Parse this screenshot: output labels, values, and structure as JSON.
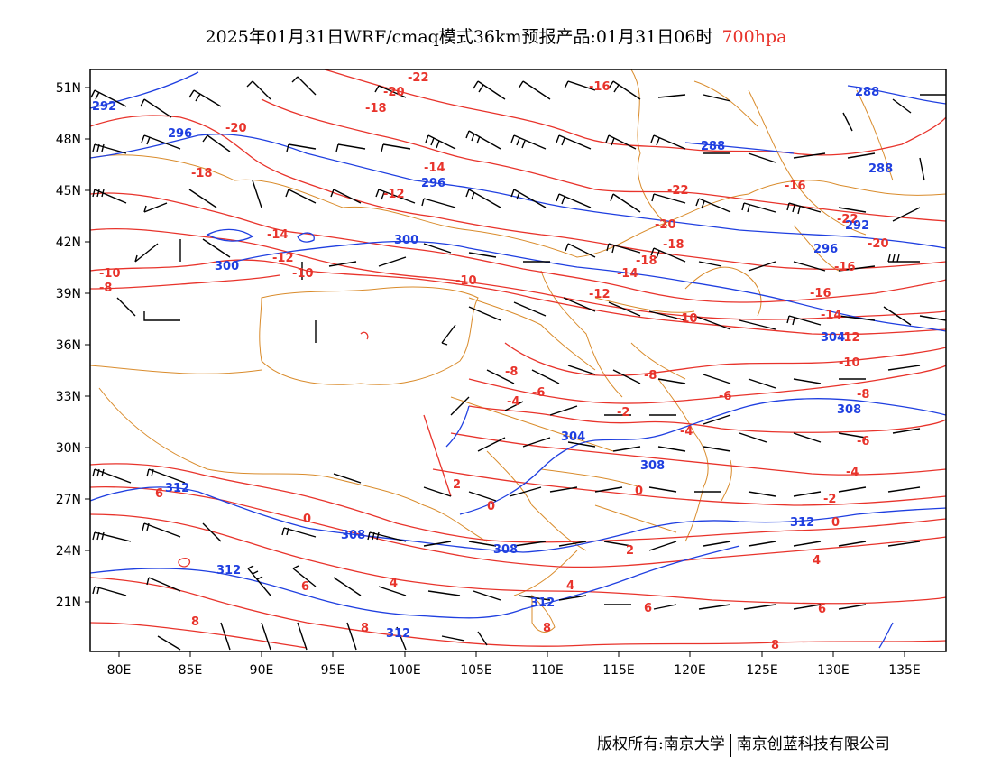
{
  "title": {
    "main": "2025年01月31日WRF/cmaq模式36km预报产品:01月31日06时",
    "level": "700hpa"
  },
  "axes": {
    "lat_labels": [
      "51N",
      "48N",
      "45N",
      "42N",
      "39N",
      "36N",
      "33N",
      "30N",
      "27N",
      "24N",
      "21N"
    ],
    "lon_labels": [
      "80E",
      "85E",
      "90E",
      "95E",
      "100E",
      "105E",
      "110E",
      "115E",
      "120E",
      "125E",
      "130E",
      "135E"
    ]
  },
  "colors": {
    "temperature": "#e8332b",
    "height": "#1f3fe0",
    "border": "#d98b2b",
    "wind": "#000000",
    "level_text": "#e8332b"
  },
  "temperature_labels": [
    "-22",
    "-20",
    "-18",
    "-16",
    "-14",
    "-12",
    "-10",
    "-8",
    "-6",
    "-4",
    "-2",
    "0",
    "2",
    "4",
    "6",
    "8"
  ],
  "height_labels": [
    "288",
    "292",
    "296",
    "300",
    "304",
    "308",
    "312"
  ],
  "footer": {
    "owner": "版权所有:南京大学",
    "company": "南京创蓝科技有限公司"
  }
}
